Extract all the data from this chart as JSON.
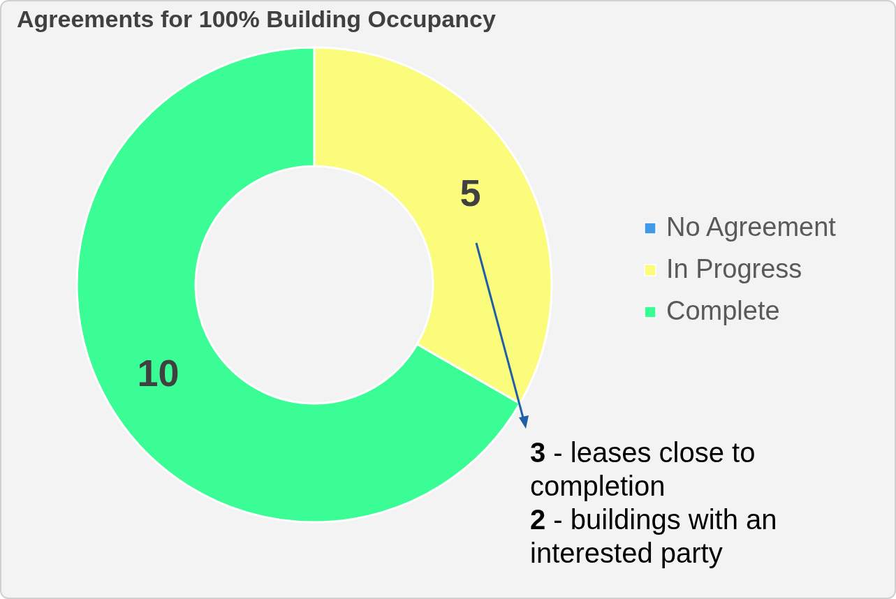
{
  "chart_data": {
    "type": "donut",
    "title": "Agreements for 100% Building Occupancy",
    "categories": [
      "No Agreement",
      "In Progress",
      "Complete"
    ],
    "values": [
      0,
      5,
      10
    ],
    "colors": [
      "#3f9be8",
      "#fbfb7c",
      "#3bfd95"
    ],
    "value_labels": [
      null,
      "5",
      "10"
    ],
    "legend": "right",
    "annotations": [
      "3 - leases close to completion",
      "2 - buildings with an interested party"
    ]
  }
}
